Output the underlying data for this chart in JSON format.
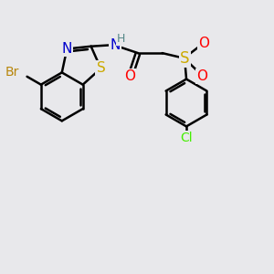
{
  "bg_color": "#e8e8eb",
  "bond_color": "#000000",
  "bond_width": 1.8,
  "font_size": 10,
  "atom_colors": {
    "Br": "#b8860b",
    "S_thiazole": "#ccaa00",
    "N": "#0000cc",
    "H": "#558888",
    "O": "#ff0000",
    "S_sulfonyl": "#ccaa00",
    "Cl": "#44ee00",
    "C": "#000000"
  },
  "figsize": [
    3.0,
    3.0
  ],
  "dpi": 100
}
